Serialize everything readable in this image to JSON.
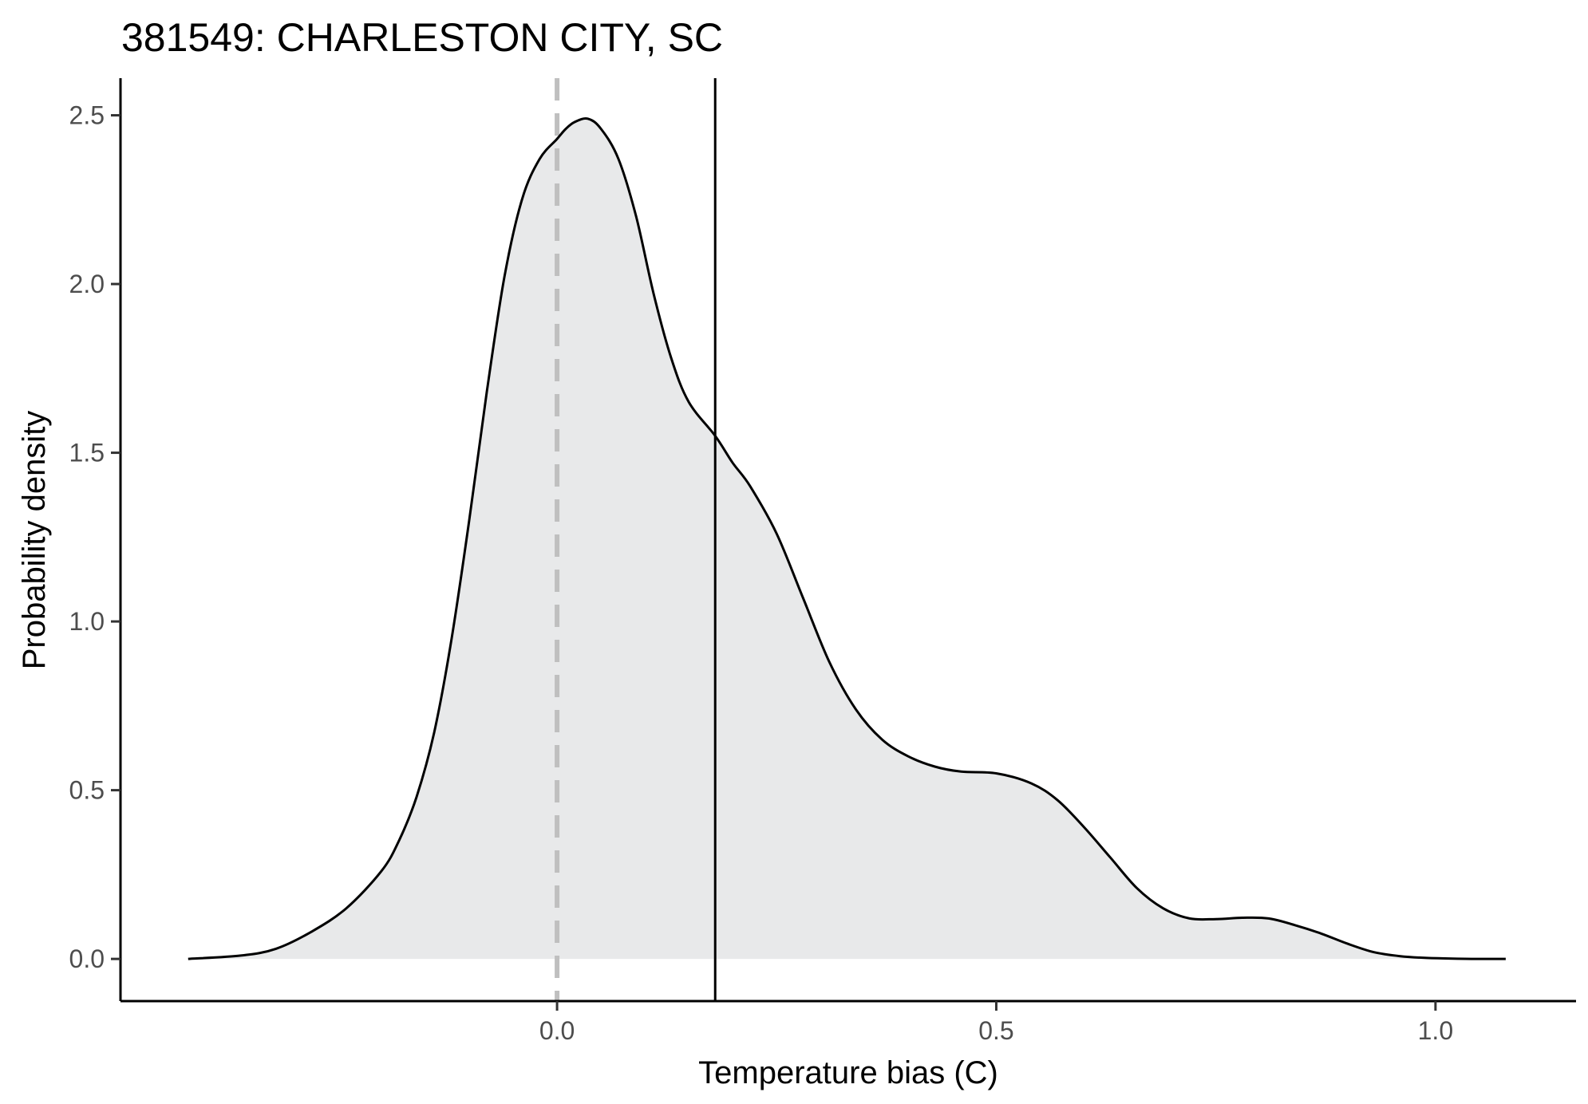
{
  "chart_data": {
    "type": "area",
    "title": "381549: CHARLESTON CITY, SC",
    "xlabel": "Temperature bias (C)",
    "ylabel": "Probability density",
    "xlim": [
      -0.497,
      1.16
    ],
    "ylim": [
      -0.125,
      2.61
    ],
    "x_ticks": [
      0.0,
      0.5,
      1.0
    ],
    "x_tick_labels": [
      "0.0",
      "0.5",
      "1.0"
    ],
    "y_ticks": [
      0.0,
      0.5,
      1.0,
      1.5,
      2.0,
      2.5
    ],
    "y_tick_labels": [
      "0.0",
      "0.5",
      "1.0",
      "1.5",
      "2.0",
      "2.5"
    ],
    "grid": false,
    "colors": {
      "fill": "#e8e9ea",
      "line": "#000000",
      "reference_line": "#bfbfbf",
      "axis": "#000000"
    },
    "series": [
      {
        "x": [
          -0.42,
          -0.36,
          -0.32,
          -0.28,
          -0.24,
          -0.2,
          -0.18,
          -0.16,
          -0.14,
          -0.12,
          -0.1,
          -0.08,
          -0.06,
          -0.04,
          -0.02,
          0.0,
          0.01,
          0.02,
          0.035,
          0.05,
          0.07,
          0.09,
          0.11,
          0.13,
          0.15,
          0.18,
          0.2,
          0.22,
          0.25,
          0.28,
          0.31,
          0.34,
          0.37,
          0.4,
          0.43,
          0.46,
          0.5,
          0.54,
          0.57,
          0.6,
          0.63,
          0.66,
          0.69,
          0.72,
          0.75,
          0.78,
          0.81,
          0.84,
          0.87,
          0.9,
          0.93,
          0.96,
          0.99,
          1.02,
          1.05,
          1.08
        ],
        "y": [
          0.0,
          0.01,
          0.03,
          0.08,
          0.15,
          0.26,
          0.35,
          0.48,
          0.67,
          0.95,
          1.3,
          1.68,
          2.02,
          2.25,
          2.37,
          2.43,
          2.46,
          2.48,
          2.49,
          2.46,
          2.37,
          2.2,
          1.97,
          1.78,
          1.65,
          1.55,
          1.47,
          1.4,
          1.26,
          1.07,
          0.88,
          0.74,
          0.65,
          0.6,
          0.57,
          0.555,
          0.55,
          0.52,
          0.47,
          0.39,
          0.3,
          0.21,
          0.15,
          0.12,
          0.118,
          0.122,
          0.12,
          0.1,
          0.075,
          0.045,
          0.02,
          0.008,
          0.003,
          0.001,
          0.0,
          0.0
        ]
      }
    ],
    "reference_lines": [
      {
        "axis": "x",
        "value": 0.0,
        "style": "dashed"
      },
      {
        "axis": "x",
        "value": 0.18,
        "style": "solid"
      }
    ]
  }
}
